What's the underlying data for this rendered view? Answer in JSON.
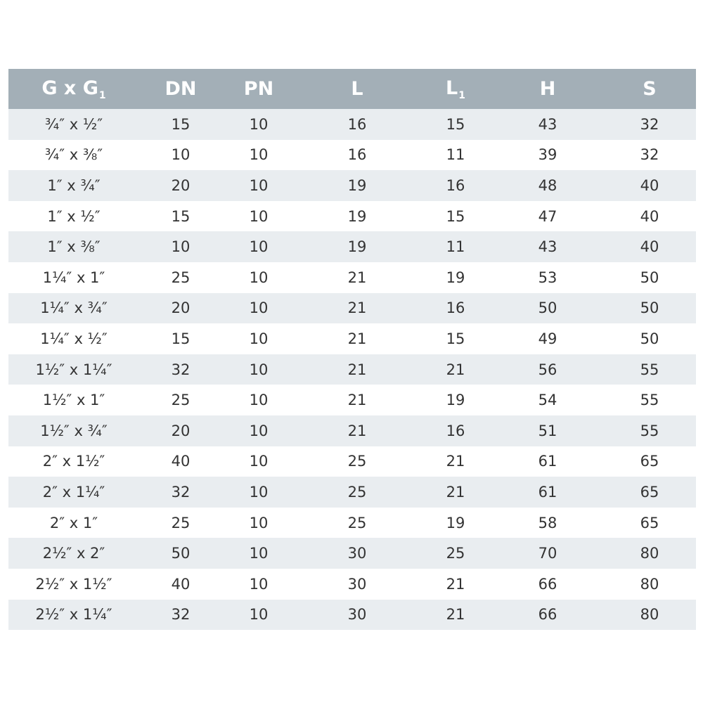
{
  "table": {
    "columns": [
      {
        "label": "G x G",
        "sub": "1"
      },
      {
        "label": "DN",
        "sub": ""
      },
      {
        "label": "PN",
        "sub": ""
      },
      {
        "label": "L",
        "sub": ""
      },
      {
        "label": "L",
        "sub": "1"
      },
      {
        "label": "H",
        "sub": ""
      },
      {
        "label": "S",
        "sub": ""
      }
    ],
    "rows": [
      [
        "¾″ x ½″",
        "15",
        "10",
        "16",
        "15",
        "43",
        "32"
      ],
      [
        "¾″ x ⅜″",
        "10",
        "10",
        "16",
        "11",
        "39",
        "32"
      ],
      [
        "1″ x ¾″",
        "20",
        "10",
        "19",
        "16",
        "48",
        "40"
      ],
      [
        "1″ x ½″",
        "15",
        "10",
        "19",
        "15",
        "47",
        "40"
      ],
      [
        "1″ x ⅜″",
        "10",
        "10",
        "19",
        "11",
        "43",
        "40"
      ],
      [
        "1¼″ x 1″",
        "25",
        "10",
        "21",
        "19",
        "53",
        "50"
      ],
      [
        "1¼″ x ¾″",
        "20",
        "10",
        "21",
        "16",
        "50",
        "50"
      ],
      [
        "1¼″ x ½″",
        "15",
        "10",
        "21",
        "15",
        "49",
        "50"
      ],
      [
        "1½″ x 1¼″",
        "32",
        "10",
        "21",
        "21",
        "56",
        "55"
      ],
      [
        "1½″ x 1″",
        "25",
        "10",
        "21",
        "19",
        "54",
        "55"
      ],
      [
        "1½″ x ¾″",
        "20",
        "10",
        "21",
        "16",
        "51",
        "55"
      ],
      [
        "2″ x 1½″",
        "40",
        "10",
        "25",
        "21",
        "61",
        "65"
      ],
      [
        "2″ x 1¼″",
        "32",
        "10",
        "25",
        "21",
        "61",
        "65"
      ],
      [
        "2″ x 1″",
        "25",
        "10",
        "25",
        "19",
        "58",
        "65"
      ],
      [
        "2½″ x 2″",
        "50",
        "10",
        "30",
        "25",
        "70",
        "80"
      ],
      [
        "2½″ x 1½″",
        "40",
        "10",
        "30",
        "21",
        "66",
        "80"
      ],
      [
        "2½″ x 1¼″",
        "32",
        "10",
        "30",
        "21",
        "66",
        "80"
      ]
    ]
  },
  "colors": {
    "header_bg": "#a3afb7",
    "header_text": "#ffffff",
    "stripe": "#e9edf0",
    "cell_text": "#333333"
  }
}
